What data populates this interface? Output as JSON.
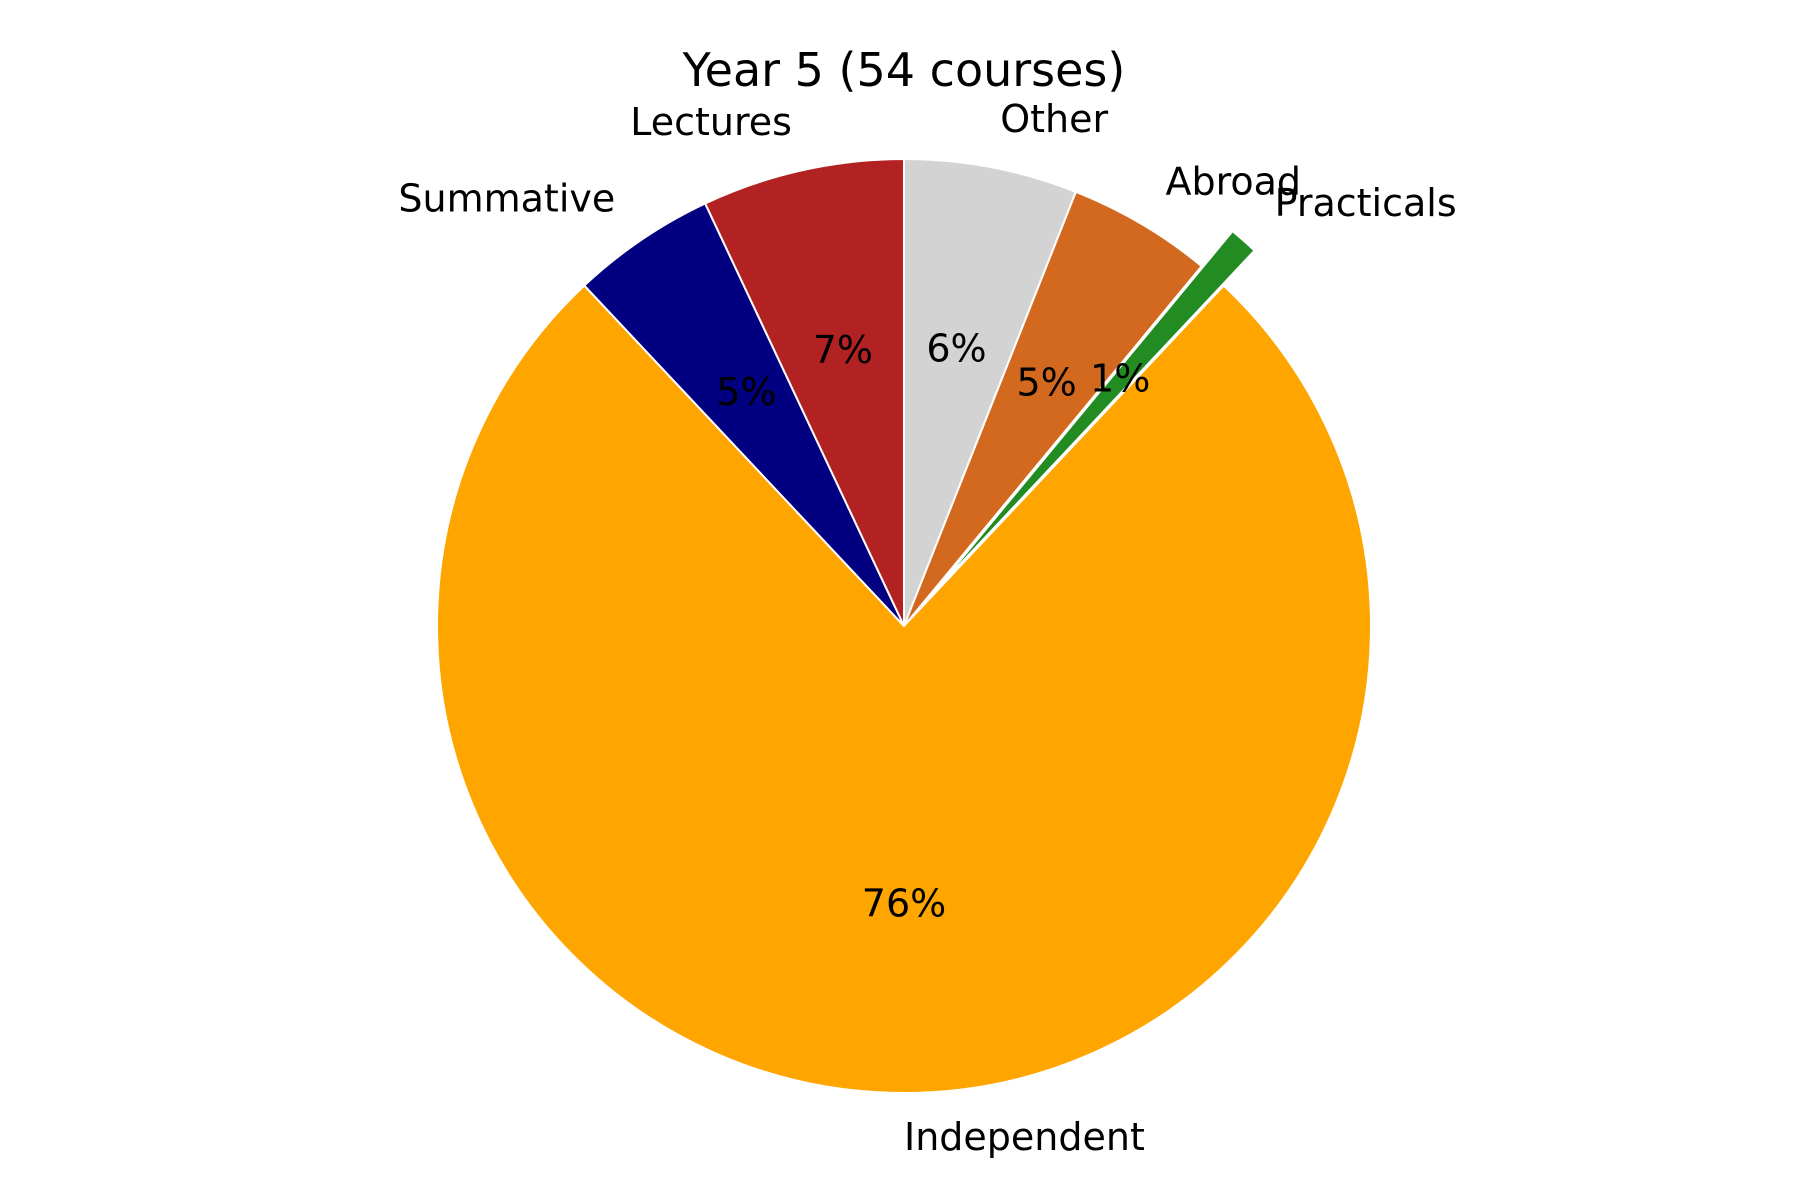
{
  "chart_data": {
    "type": "pie",
    "title": "Year 5 (54 courses)",
    "start_angle_deg": 90,
    "direction": "clockwise",
    "slices": [
      {
        "label": "Other",
        "value": 6,
        "display": "6%",
        "color": "#d3d3d3",
        "exploded": false
      },
      {
        "label": "Abroad",
        "value": 5,
        "display": "5%",
        "color": "#d2691e",
        "exploded": false
      },
      {
        "label": "Practicals",
        "value": 1,
        "display": "1%",
        "color": "#228b22",
        "exploded": true
      },
      {
        "label": "Independent",
        "value": 76,
        "display": "76%",
        "color": "#ffa500",
        "exploded": false
      },
      {
        "label": "Summative",
        "value": 5,
        "display": "5%",
        "color": "#000080",
        "exploded": false
      },
      {
        "label": "Lectures",
        "value": 7,
        "display": "7%",
        "color": "#b22222",
        "exploded": false
      }
    ]
  }
}
